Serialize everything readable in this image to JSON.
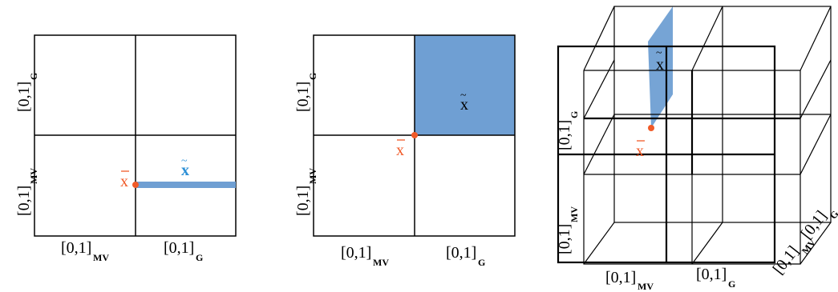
{
  "colors": {
    "region_fill": "#6f9fd3",
    "point_orange": "#f05a28",
    "xtilde_blue": "#2c8fd6",
    "grid_line": "#000000"
  },
  "panel1": {
    "xlabel_left": {
      "main": "[0,1]",
      "sub": "MV"
    },
    "xlabel_right": {
      "main": "[0,1]",
      "sub": "G"
    },
    "ylabel_bottom": {
      "main": "[0,1]",
      "sub": "MV"
    },
    "ylabel_top": {
      "main": "[0,1]",
      "sub": "G"
    },
    "xbar_label": "x",
    "xtilde_label": "x"
  },
  "panel2": {
    "xlabel_left": {
      "main": "[0,1]",
      "sub": "MV"
    },
    "xlabel_right": {
      "main": "[0,1]",
      "sub": "G"
    },
    "ylabel_bottom": {
      "main": "[0,1]",
      "sub": "MV"
    },
    "ylabel_top": {
      "main": "[0,1]",
      "sub": "G"
    },
    "xbar_label": "x",
    "xtilde_label": "x"
  },
  "panel3": {
    "xlabel_left": {
      "main": "[0,1]",
      "sub": "MV"
    },
    "xlabel_right": {
      "main": "[0,1]",
      "sub": "G"
    },
    "ylabel_bottom": {
      "main": "[0,1]",
      "sub": "MV"
    },
    "ylabel_top": {
      "main": "[0,1]",
      "sub": "G"
    },
    "zlabel_front": {
      "main": "[0,1]",
      "sub": "MV"
    },
    "zlabel_back": {
      "main": "[0,1]",
      "sub": "G"
    },
    "xbar_label": "x",
    "xtilde_label": "x"
  }
}
